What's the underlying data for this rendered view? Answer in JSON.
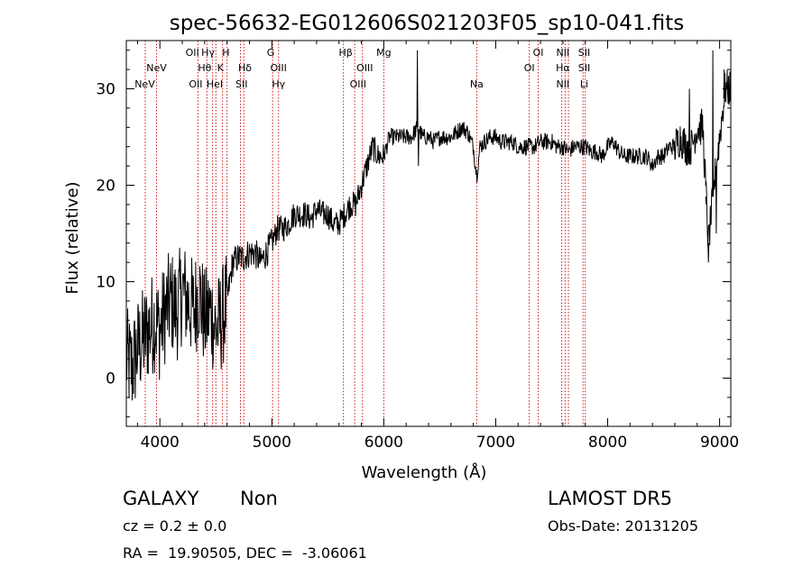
{
  "chart_data": {
    "type": "line",
    "title": "spec-56632-EG012606S021203F05_sp10-041.fits",
    "xlabel": "Wavelength (Å)",
    "ylabel": "Flux (relative)",
    "xlim": [
      3700,
      9100
    ],
    "ylim": [
      -5,
      35
    ],
    "xticks": [
      4000,
      5000,
      6000,
      7000,
      8000,
      9000
    ],
    "yticks": [
      0,
      10,
      20,
      30
    ],
    "grid": false,
    "line_color": "#000000",
    "marker_line_color": "#cc0000",
    "series": [
      {
        "x": [
          3700,
          3750,
          3800,
          3850,
          3900,
          3950,
          4000,
          4050,
          4100,
          4150,
          4200,
          4250,
          4300,
          4350,
          4400,
          4450,
          4500,
          4550,
          4600,
          4650,
          4700,
          4750,
          4800,
          4850,
          4900,
          4950,
          5000,
          5050,
          5100,
          5150,
          5200,
          5250,
          5300,
          5350,
          5400,
          5450,
          5500,
          5550,
          5600,
          5650,
          5700,
          5750,
          5800,
          5850,
          5900,
          5950,
          6000,
          6050,
          6100,
          6150,
          6200,
          6250,
          6300,
          6350,
          6400,
          6450,
          6500,
          6550,
          6600,
          6650,
          6700,
          6750,
          6800,
          6830,
          6860,
          6900,
          6950,
          7000,
          7050,
          7100,
          7150,
          7200,
          7250,
          7300,
          7350,
          7400,
          7450,
          7500,
          7550,
          7600,
          7650,
          7700,
          7750,
          7800,
          7850,
          7900,
          7950,
          8000,
          8050,
          8100,
          8150,
          8200,
          8250,
          8300,
          8350,
          8400,
          8450,
          8500,
          8550,
          8600,
          8650,
          8700,
          8750,
          8800,
          8850,
          8900,
          8950,
          9000,
          9050
        ],
        "values": [
          2,
          1,
          3,
          4,
          5,
          6,
          5,
          7,
          8,
          7,
          9,
          8,
          7,
          9,
          6,
          7,
          5,
          6,
          8,
          12,
          12.5,
          12.5,
          13,
          13,
          12,
          13,
          14,
          15.5,
          15.5,
          16,
          17,
          17,
          17,
          16.5,
          17.5,
          17,
          17,
          16,
          16,
          17,
          18,
          18,
          20,
          22,
          24,
          23,
          23,
          25,
          25,
          25,
          25,
          25,
          26,
          25,
          25,
          24.5,
          25,
          25,
          25,
          25.5,
          26,
          25.5,
          24,
          21,
          24,
          24.5,
          25,
          25,
          24.5,
          24.5,
          24.5,
          24,
          24,
          24,
          24,
          24.5,
          24.5,
          24.5,
          24,
          24,
          23.5,
          24,
          24,
          24,
          23.5,
          23.5,
          23,
          24,
          24.5,
          23.5,
          23,
          23,
          23,
          23,
          23,
          22,
          23,
          23,
          24,
          24,
          25,
          24,
          24,
          26,
          26,
          14,
          20,
          25,
          30
        ]
      }
    ],
    "spikes": [
      {
        "x": 6300,
        "y": 34
      },
      {
        "x": 6310,
        "y": 22
      },
      {
        "x": 8730,
        "y": 30
      },
      {
        "x": 8880,
        "y": 18
      },
      {
        "x": 8900,
        "y": 12
      },
      {
        "x": 8940,
        "y": 34
      },
      {
        "x": 8970,
        "y": 15
      },
      {
        "x": 9040,
        "y": 32
      }
    ],
    "lines": [
      {
        "x": 3869,
        "top": [
          "NeV"
        ]
      },
      {
        "x": 3970,
        "top": [
          "NeV"
        ]
      },
      {
        "x": 4340,
        "top": [
          "OII",
          "OII"
        ]
      },
      {
        "x": 4420,
        "top": [
          "Hγ",
          "Hθ"
        ]
      },
      {
        "x": 4471,
        "top": [
          "HeI"
        ]
      },
      {
        "x": 4500,
        "top": [
          "H",
          "K"
        ]
      },
      {
        "x": 4560,
        "top": [
          "Hδ"
        ]
      },
      {
        "x": 4600,
        "top": [
          "SII"
        ]
      },
      {
        "x": 4720,
        "top": []
      },
      {
        "x": 4750,
        "top": []
      },
      {
        "x": 5007,
        "top": [
          "G",
          "OIII"
        ]
      },
      {
        "x": 5060,
        "top": [
          "Hγ"
        ]
      },
      {
        "x": 5640,
        "top": [
          "Hβ"
        ]
      },
      {
        "x": 5740,
        "top": [
          "OIII"
        ]
      },
      {
        "x": 5810,
        "top": [
          "OIII"
        ]
      },
      {
        "x": 6000,
        "top": [
          "Mg"
        ]
      },
      {
        "x": 6830,
        "top": [
          "Na"
        ]
      },
      {
        "x": 7300,
        "top": [
          "OI"
        ]
      },
      {
        "x": 7380,
        "top": [
          "OI"
        ]
      },
      {
        "x": 7590,
        "top": [
          "NII",
          "Hα",
          "NII"
        ]
      },
      {
        "x": 7620,
        "top": []
      },
      {
        "x": 7650,
        "top": []
      },
      {
        "x": 7780,
        "top": [
          "SII",
          "SII",
          "Li"
        ]
      },
      {
        "x": 7800,
        "top": []
      }
    ],
    "labels": [
      {
        "text": "OII",
        "row": 0,
        "x": 4290
      },
      {
        "text": "Hγ",
        "row": 0,
        "x": 4430
      },
      {
        "text": "H",
        "row": 0,
        "x": 4590
      },
      {
        "text": "G",
        "row": 0,
        "x": 4990
      },
      {
        "text": "Hβ",
        "row": 0,
        "x": 5660
      },
      {
        "text": "Mg",
        "row": 0,
        "x": 6000
      },
      {
        "text": "OI",
        "row": 0,
        "x": 7380
      },
      {
        "text": "NII",
        "row": 0,
        "x": 7600
      },
      {
        "text": "SII",
        "row": 0,
        "x": 7790
      },
      {
        "text": "NeV",
        "row": 1,
        "x": 3970
      },
      {
        "text": "Hθ",
        "row": 1,
        "x": 4400
      },
      {
        "text": "K",
        "row": 1,
        "x": 4540
      },
      {
        "text": "Hδ",
        "row": 1,
        "x": 4760
      },
      {
        "text": "OIII",
        "row": 1,
        "x": 5060
      },
      {
        "text": "OIII",
        "row": 1,
        "x": 5830
      },
      {
        "text": "OI",
        "row": 1,
        "x": 7300
      },
      {
        "text": "Hα",
        "row": 1,
        "x": 7600
      },
      {
        "text": "SII",
        "row": 1,
        "x": 7790
      },
      {
        "text": "NeV",
        "row": 2,
        "x": 3865
      },
      {
        "text": "OII",
        "row": 2,
        "x": 4320
      },
      {
        "text": "HeI",
        "row": 2,
        "x": 4490
      },
      {
        "text": "SII",
        "row": 2,
        "x": 4730
      },
      {
        "text": "Hγ",
        "row": 2,
        "x": 5060
      },
      {
        "text": "OIII",
        "row": 2,
        "x": 5770
      },
      {
        "text": "Na",
        "row": 2,
        "x": 6830
      },
      {
        "text": "NII",
        "row": 2,
        "x": 7600
      },
      {
        "text": "Li",
        "row": 2,
        "x": 7790
      }
    ]
  },
  "info": {
    "class": "GALAXY",
    "subclass": "Non",
    "survey": "LAMOST DR5",
    "cz": "cz = 0.2 ± 0.0",
    "obs_date": "Obs-Date: 20131205",
    "radec": "RA =  19.90505, DEC =  -3.06061"
  }
}
